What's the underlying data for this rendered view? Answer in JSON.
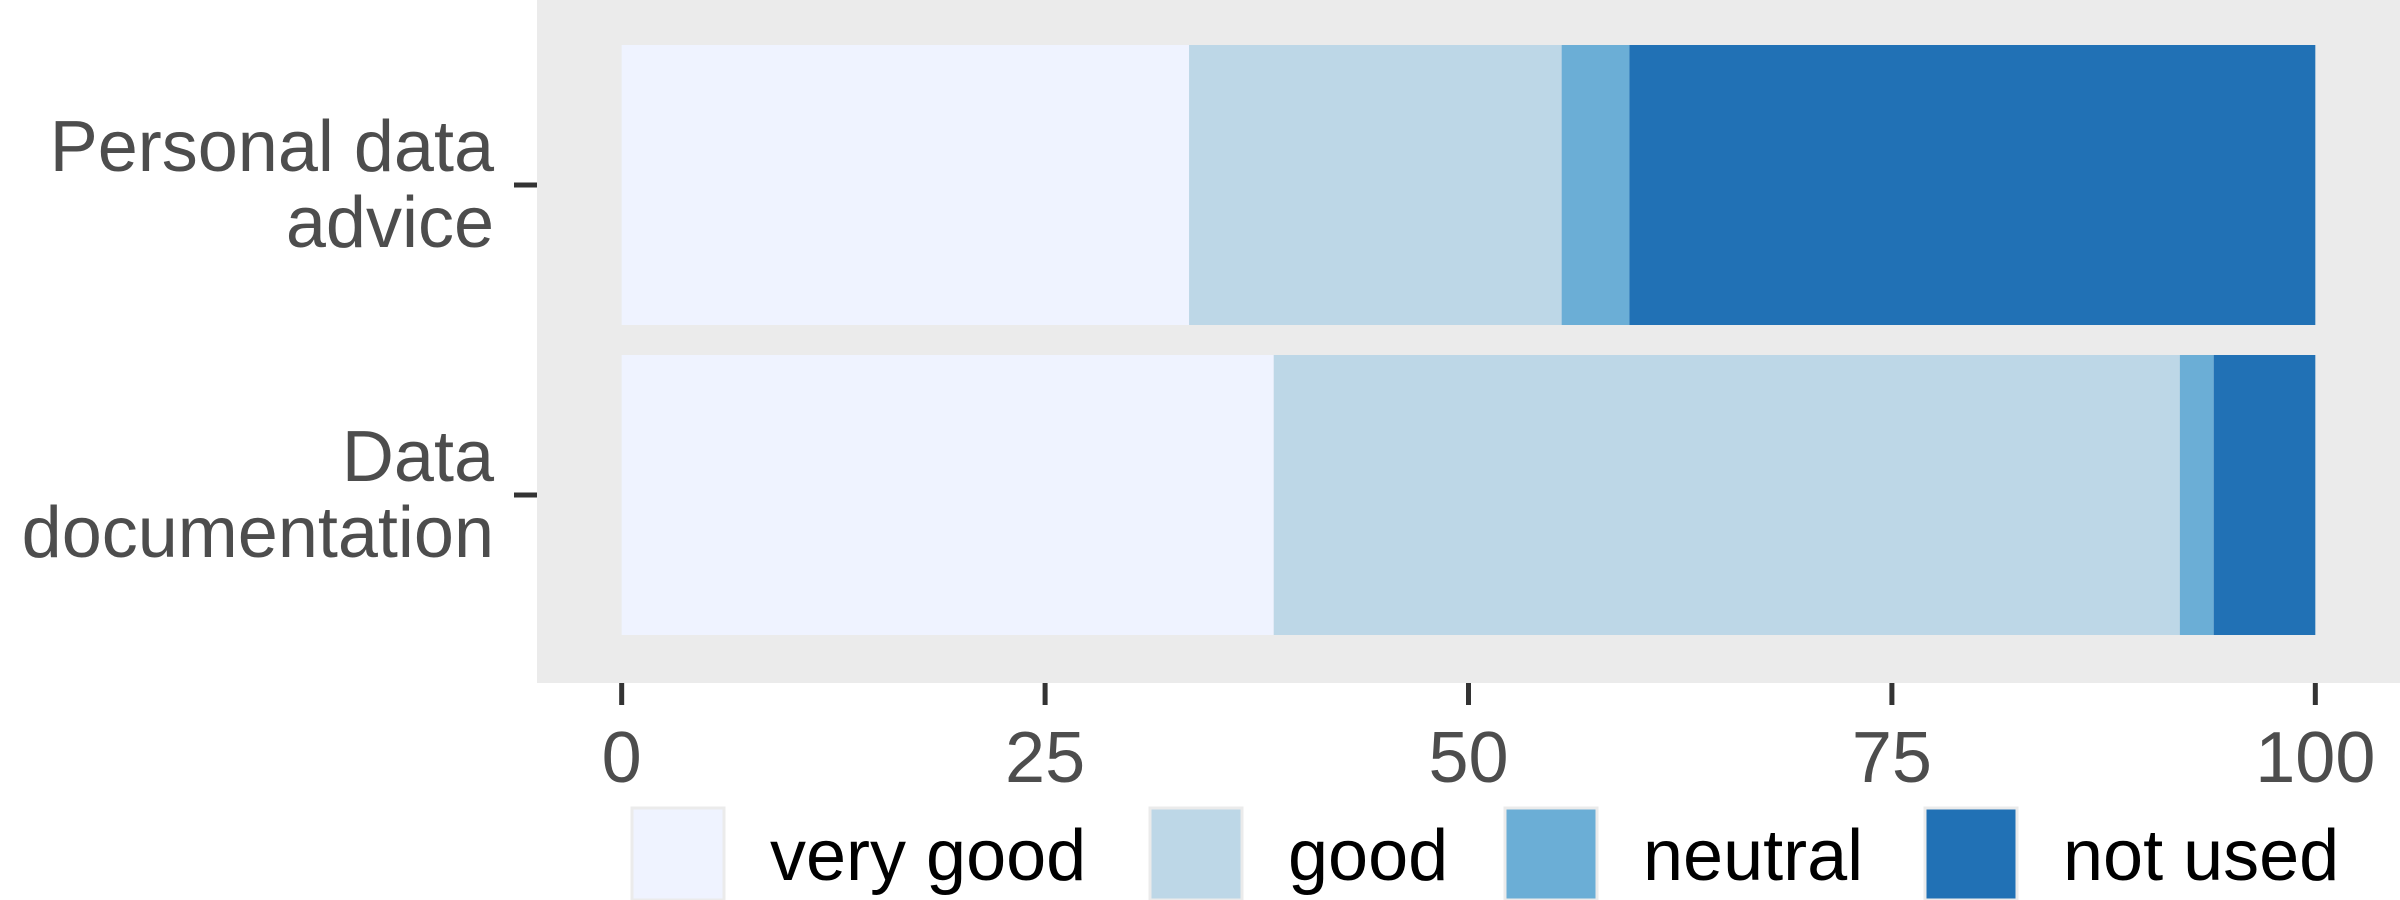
{
  "chart_data": {
    "type": "bar",
    "orientation": "horizontal",
    "stacked": true,
    "categories": [
      "Personal data\nadvice",
      "Data\ndocumentation"
    ],
    "series": [
      {
        "name": "very good",
        "color": "#eff3ff",
        "values": [
          33.5,
          38.5
        ]
      },
      {
        "name": "good",
        "color": "#bdd7e7",
        "values": [
          22,
          53.5
        ]
      },
      {
        "name": "neutral",
        "color": "#6baed6",
        "values": [
          4,
          2
        ]
      },
      {
        "name": "not used",
        "color": "#2171b5",
        "values": [
          40.5,
          6
        ]
      }
    ],
    "x_ticks": [
      "0",
      "25",
      "50",
      "75",
      "100"
    ],
    "xlim": [
      -5,
      105
    ],
    "xlabel": "",
    "ylabel": "",
    "title": "",
    "grid": false,
    "panel_background": "#ebebeb",
    "legend_position": "bottom"
  }
}
